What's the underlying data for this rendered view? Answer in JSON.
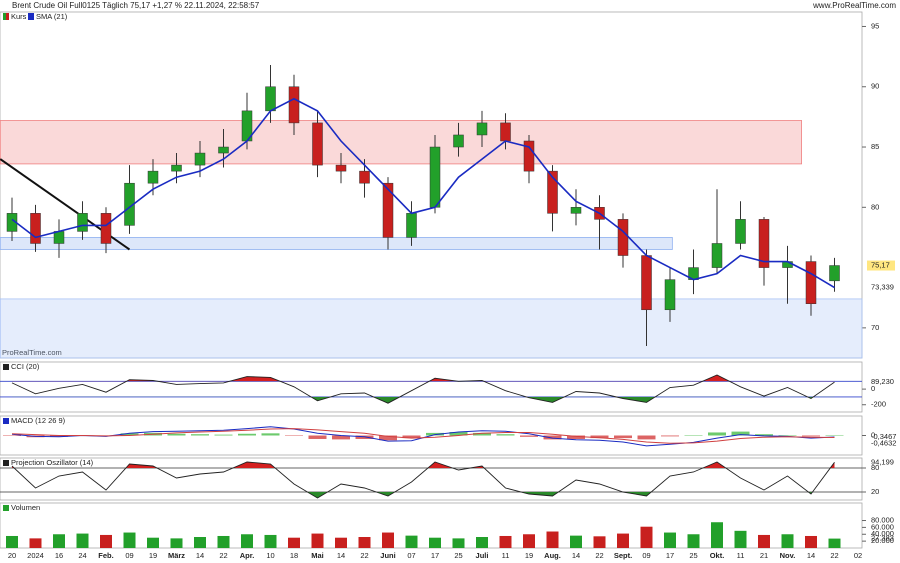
{
  "header": {
    "title": "Brent Crude Oil Full0125 Täglich 75,17 +1,27 % 22.11.2024, 22:58:57",
    "site": "www.ProRealTime.com",
    "watermark": "ProRealTime.com"
  },
  "chart_data": [
    {
      "type": "candlestick",
      "name": "Kurs",
      "up_color": "#22a02a",
      "down_color": "#c8201e",
      "open": [
        78,
        79.5,
        77,
        78,
        79.5,
        78.5,
        82,
        83,
        83.5,
        84.5,
        85.5,
        88,
        90,
        87,
        83.5,
        83,
        82,
        77.5,
        80,
        85,
        86,
        87,
        85.5,
        83,
        79.5,
        80,
        79,
        76,
        71.5,
        74,
        75,
        77,
        79,
        75,
        75.5,
        73.9
      ],
      "high": [
        80.8,
        80.2,
        79.0,
        80.5,
        80.0,
        83.5,
        84.0,
        84.5,
        85.5,
        86.5,
        89.5,
        91.8,
        91.0,
        88.0,
        84.5,
        84.0,
        82.5,
        80.5,
        86.0,
        87.0,
        88.0,
        87.8,
        86.0,
        83.5,
        81.5,
        81.0,
        79.5,
        76.5,
        75.0,
        76.5,
        81.5,
        80.5,
        79.2,
        76.8,
        76.0,
        75.8
      ],
      "low": [
        77.2,
        76.3,
        75.8,
        77.3,
        76.2,
        77.8,
        81.0,
        82.0,
        82.5,
        83.3,
        84.8,
        87.0,
        86.0,
        82.5,
        82.0,
        80.8,
        76.5,
        76.8,
        79.5,
        84.2,
        85.0,
        84.8,
        82.0,
        78.0,
        78.5,
        76.5,
        75.0,
        68.5,
        70.5,
        72.8,
        74.5,
        76.5,
        73.5,
        72.0,
        71.0,
        73.0
      ],
      "close": [
        79.5,
        77,
        78,
        79.5,
        77,
        82,
        83,
        83.5,
        84.5,
        85,
        88,
        90,
        87,
        83.5,
        83,
        82,
        77.5,
        79.5,
        85,
        86,
        87,
        85.5,
        83,
        79.5,
        80,
        79,
        76,
        71.5,
        74,
        75,
        77,
        79,
        75,
        75.5,
        72,
        75.17
      ],
      "value_labels": [
        null,
        null,
        null,
        null,
        null,
        null,
        null,
        null,
        null,
        null,
        null,
        null,
        null,
        null,
        null,
        null,
        null,
        null,
        null,
        null,
        null,
        null,
        null,
        null,
        null,
        null,
        null,
        null,
        null,
        null,
        null,
        null,
        null,
        null,
        null,
        "75,17"
      ],
      "series": [
        {
          "name": "SMA (21)",
          "color": "#1a2bc2",
          "values": [
            79,
            77.5,
            78,
            78.5,
            78.5,
            80,
            81.5,
            82.5,
            83,
            84,
            85.5,
            88,
            89,
            88,
            85.5,
            83.5,
            81.5,
            79.5,
            80,
            82.5,
            84,
            85.5,
            85,
            82.5,
            80.5,
            79.5,
            78,
            76,
            75,
            74,
            74.5,
            76,
            75.5,
            75.5,
            74.5,
            73.339
          ],
          "value_labels": [
            null,
            null,
            null,
            null,
            null,
            null,
            null,
            null,
            null,
            null,
            null,
            null,
            null,
            null,
            null,
            null,
            null,
            null,
            null,
            null,
            null,
            null,
            null,
            null,
            null,
            null,
            null,
            null,
            null,
            null,
            null,
            null,
            null,
            null,
            null,
            "73,339"
          ]
        }
      ],
      "zones": [
        {
          "ylim": [
            83.6,
            87.2
          ],
          "x": [
            -0.5,
            33.6
          ],
          "color": "#f08080"
        },
        {
          "ylim": [
            76.5,
            77.5
          ],
          "x": [
            -0.5,
            28.1
          ],
          "color": "#8fb0f0"
        },
        {
          "ylim": [
            67.5,
            72.4
          ],
          "x": [
            -0.5,
            36.2
          ],
          "color": "#a8c2f5"
        }
      ],
      "trendline": {
        "x": [
          -0.5,
          5
        ],
        "y": [
          84,
          76.5
        ],
        "color": "#111"
      },
      "ylim": [
        67.5,
        96.2
      ],
      "yticks": [
        70,
        80,
        85,
        90,
        95
      ]
    },
    {
      "type": "line",
      "title": "CCI (20)",
      "series": [
        {
          "color": "#222",
          "values": [
            80,
            -60,
            10,
            60,
            -40,
            120,
            110,
            60,
            70,
            80,
            160,
            150,
            30,
            -150,
            -60,
            -50,
            -180,
            -20,
            140,
            100,
            110,
            -20,
            -110,
            -170,
            -30,
            -50,
            -120,
            -170,
            20,
            50,
            180,
            30,
            -90,
            20,
            -120,
            89.23
          ],
          "value_labels": [
            null,
            null,
            null,
            null,
            null,
            null,
            null,
            null,
            null,
            null,
            null,
            null,
            null,
            null,
            null,
            null,
            null,
            null,
            null,
            null,
            null,
            null,
            null,
            null,
            null,
            null,
            null,
            null,
            null,
            null,
            null,
            null,
            null,
            null,
            null,
            "89,230"
          ]
        }
      ],
      "levels": [
        100,
        -100
      ],
      "up_fill": "#d42020",
      "down_fill": "#2a8a2a",
      "ylim": [
        -293,
        347
      ],
      "yticks": [
        0,
        -200
      ]
    },
    {
      "type": "macd",
      "title": "MACD (12 26 9)",
      "series": [
        {
          "color": "#1a2bc2",
          "values": [
            0.3,
            -0.2,
            -0.3,
            0,
            -0.2,
            0.5,
            0.9,
            1.0,
            1.1,
            1.2,
            1.6,
            2.0,
            1.5,
            0.5,
            0,
            -0.3,
            -1.3,
            -1.2,
            0.2,
            0.8,
            1.1,
            1.0,
            0.4,
            -0.6,
            -1.0,
            -1.1,
            -1.5,
            -2.4,
            -2.0,
            -1.6,
            -0.6,
            0.2,
            -0.1,
            -0.2,
            -0.6,
            -0.3467
          ],
          "value_labels": [
            null,
            null,
            null,
            null,
            null,
            null,
            null,
            null,
            null,
            null,
            null,
            null,
            null,
            null,
            null,
            null,
            null,
            null,
            null,
            null,
            null,
            null,
            null,
            null,
            null,
            null,
            null,
            null,
            null,
            null,
            null,
            null,
            null,
            null,
            null,
            "-0,3467"
          ]
        },
        {
          "color": "#d04040",
          "values": [
            0.4,
            0.2,
            0,
            0,
            -0.1,
            0,
            0.3,
            0.6,
            0.8,
            1.0,
            1.2,
            1.5,
            1.6,
            1.3,
            0.9,
            0.5,
            -0.2,
            -0.6,
            -0.4,
            0,
            0.5,
            0.7,
            0.7,
            0.3,
            -0.2,
            -0.5,
            -0.9,
            -1.5,
            -1.8,
            -1.7,
            -1.3,
            -0.7,
            -0.4,
            -0.3,
            -0.4,
            -0.4632
          ],
          "value_labels": [
            null,
            null,
            null,
            null,
            null,
            null,
            null,
            null,
            null,
            null,
            null,
            null,
            null,
            null,
            null,
            null,
            null,
            null,
            null,
            null,
            null,
            null,
            null,
            null,
            null,
            null,
            null,
            null,
            null,
            null,
            null,
            null,
            null,
            null,
            null,
            "-0,4632"
          ]
        }
      ],
      "histogram": [
        -0.1,
        -0.4,
        -0.3,
        0,
        -0.1,
        0.5,
        0.6,
        0.4,
        0.3,
        0.2,
        0.4,
        0.5,
        -0.1,
        -0.8,
        -0.9,
        -0.8,
        -1.1,
        -0.6,
        0.6,
        0.8,
        0.6,
        0.3,
        -0.3,
        -0.9,
        -0.8,
        -0.6,
        -0.6,
        -0.9,
        -0.2,
        0.1,
        0.7,
        0.9,
        0.3,
        0.1,
        -0.2,
        0.1165
      ],
      "up_color": "#3cb83c",
      "down_color": "#d03030",
      "ylim": [
        -4.5,
        4.5
      ],
      "yticks": [
        0
      ]
    },
    {
      "type": "line",
      "title": "Projection Oszillator (14)",
      "series": [
        {
          "color": "#222",
          "values": [
            85,
            30,
            60,
            70,
            25,
            90,
            85,
            55,
            65,
            70,
            95,
            90,
            40,
            5,
            40,
            30,
            10,
            45,
            95,
            75,
            85,
            30,
            15,
            10,
            50,
            40,
            20,
            10,
            60,
            70,
            95,
            55,
            25,
            60,
            15,
            94.199
          ],
          "value_labels": [
            null,
            null,
            null,
            null,
            null,
            null,
            null,
            null,
            null,
            null,
            null,
            null,
            null,
            null,
            null,
            null,
            null,
            null,
            null,
            null,
            null,
            null,
            null,
            null,
            null,
            null,
            null,
            null,
            null,
            null,
            null,
            null,
            null,
            null,
            null,
            "94,199"
          ]
        }
      ],
      "levels": [
        80,
        20
      ],
      "up_fill": "#d42020",
      "down_fill": "#2a8a2a",
      "ylim": [
        0,
        105
      ],
      "yticks": [
        80,
        20
      ]
    },
    {
      "type": "bar",
      "title": "Volumen",
      "categories": [
        "20",
        "2024",
        "16",
        "24",
        "Feb.",
        "09",
        "19",
        "März",
        "14",
        "22",
        "Apr.",
        "10",
        "18",
        "Mai",
        "14",
        "22",
        "Juni",
        "07",
        "17",
        "25",
        "Juli",
        "11",
        "19",
        "Aug.",
        "14",
        "22",
        "Sept.",
        "09",
        "17",
        "25",
        "Okt.",
        "11",
        "21",
        "Nov.",
        "14",
        "22"
      ],
      "next_label": "02",
      "values": [
        35000,
        28000,
        40000,
        42000,
        38000,
        45000,
        30000,
        28000,
        32000,
        35000,
        40000,
        38000,
        30000,
        42000,
        30000,
        32000,
        45000,
        36000,
        30000,
        28000,
        32000,
        35000,
        40000,
        48000,
        36000,
        34000,
        42000,
        62000,
        45000,
        40000,
        75000,
        50000,
        38000,
        40000,
        35000,
        27383
      ],
      "value_labels": [
        null,
        null,
        null,
        null,
        null,
        null,
        null,
        null,
        null,
        null,
        null,
        null,
        null,
        null,
        null,
        null,
        null,
        null,
        null,
        null,
        null,
        null,
        null,
        null,
        null,
        null,
        null,
        null,
        null,
        null,
        null,
        null,
        null,
        null,
        null,
        "27.383"
      ],
      "up_color": "#22a02a",
      "down_color": "#c8201e",
      "ylim": [
        0,
        131000
      ],
      "yticks": [
        {
          "value": 80000,
          "label": "80.000"
        },
        {
          "value": 60000,
          "label": "60.000"
        },
        {
          "value": 40000,
          "label": "40.000"
        },
        {
          "value": 20000,
          "label": "20.000"
        }
      ]
    }
  ]
}
